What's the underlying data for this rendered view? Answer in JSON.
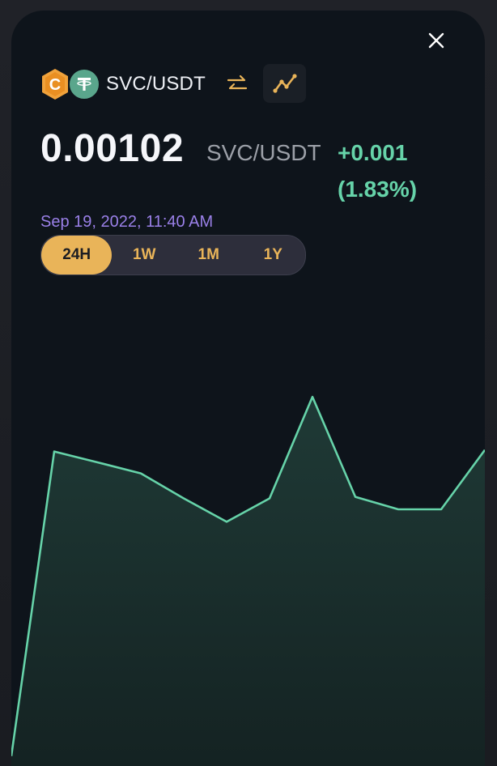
{
  "header": {
    "pair": "SVC/USDT",
    "base_token_letter": "C",
    "quote_token_letter": "T"
  },
  "price": {
    "value": "0.00102",
    "unit": "SVC/USDT",
    "change": "+0.001",
    "change_percent": "(1.83%)",
    "timestamp": "Sep 19, 2022, 11:40 AM"
  },
  "range_tabs": [
    {
      "label": "24H",
      "active": true
    },
    {
      "label": "1W",
      "active": false
    },
    {
      "label": "1M",
      "active": false
    },
    {
      "label": "1Y",
      "active": false
    }
  ],
  "icons": {
    "close": "close-icon",
    "swap": "swap-icon",
    "chart": "line-chart-icon"
  },
  "colors": {
    "accent": "#e9b459",
    "positive": "#66d3a9",
    "timestamp": "#9a80e8",
    "background": "#0e141b"
  },
  "chart_data": {
    "type": "area",
    "values": [
      -90,
      105,
      98,
      91,
      75,
      60,
      75,
      140,
      76,
      68,
      68,
      106
    ],
    "ylim": [
      -100,
      180
    ]
  }
}
